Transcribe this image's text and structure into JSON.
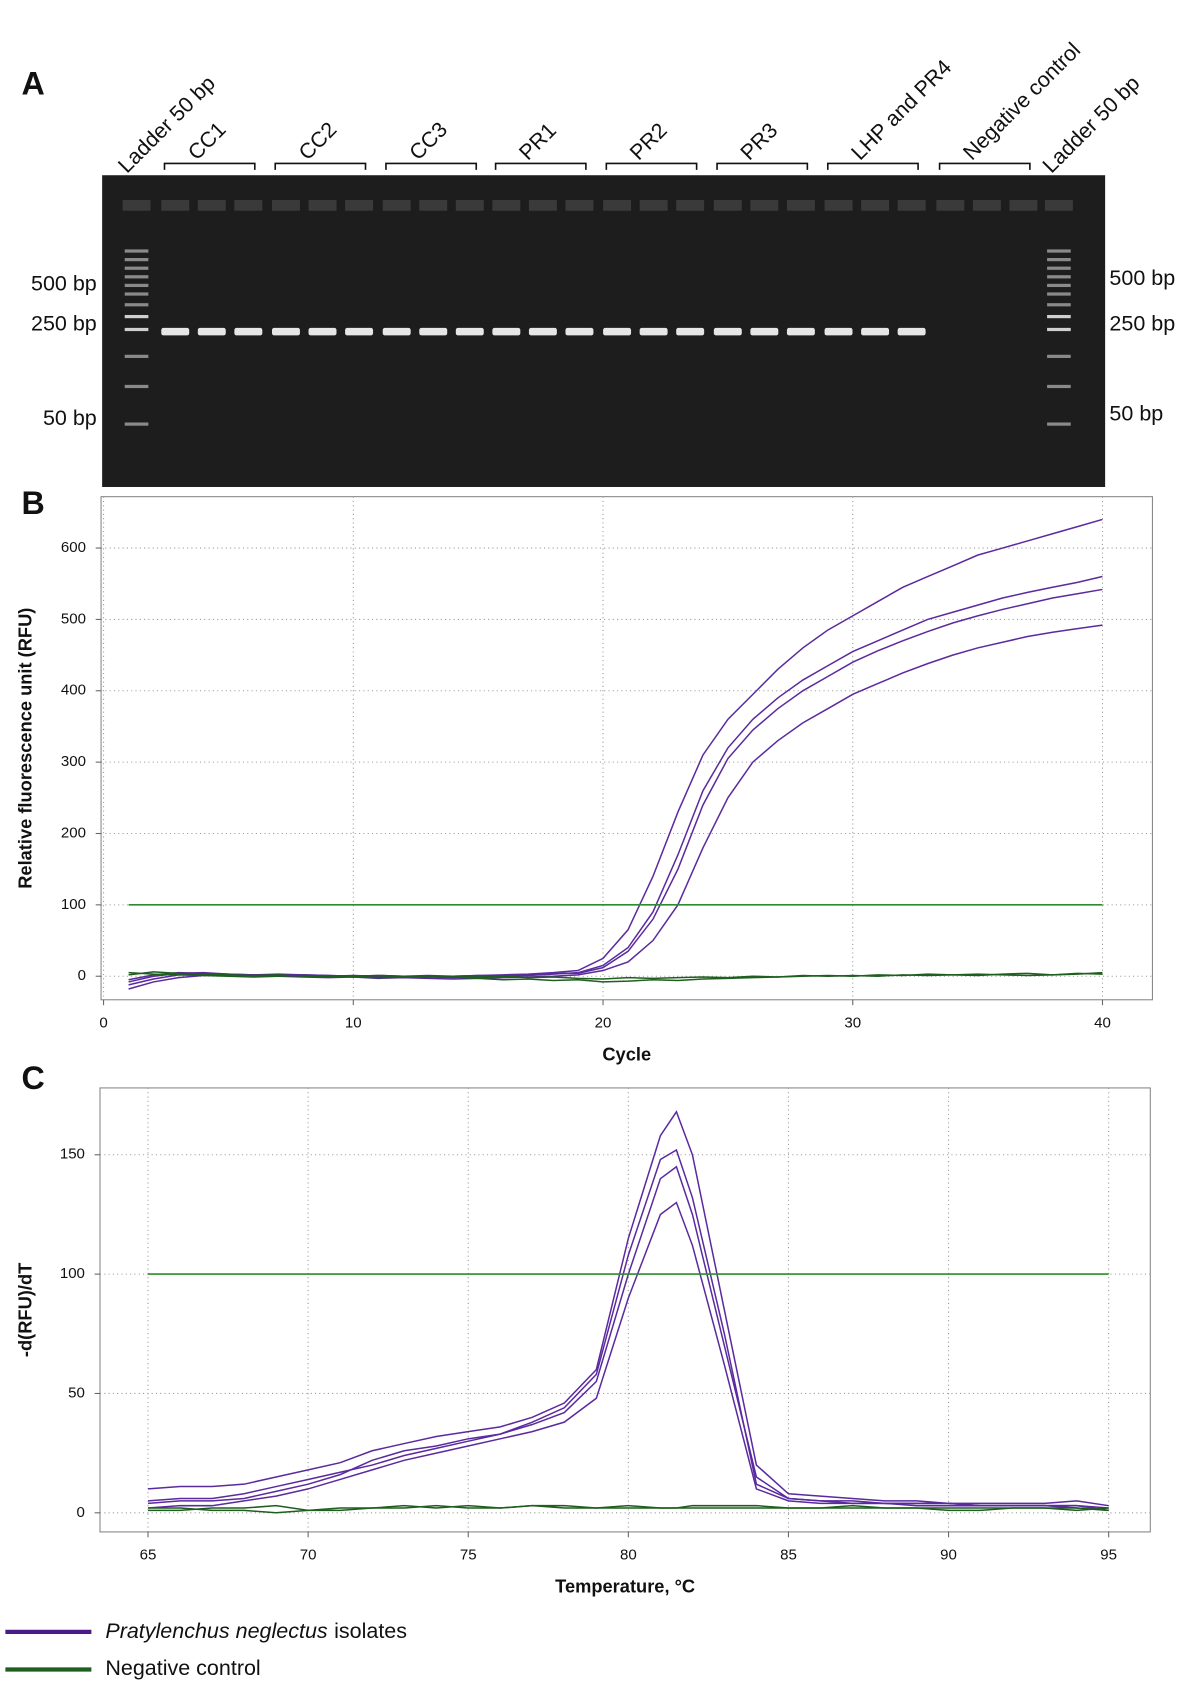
{
  "gel": {
    "label": "A",
    "lanes": [
      "Ladder 50 bp",
      "CC1",
      "CC2",
      "CC3",
      "PR1",
      "PR2",
      "PR3",
      "LHP and PR4",
      "Negative control",
      "Ladder 50 bp"
    ],
    "bp_left": [
      "500 bp",
      "250 bp",
      "50 bp"
    ],
    "bp_right": [
      "500 bp",
      "250 bp",
      "50 bp"
    ]
  },
  "chart_data": [
    {
      "type": "line",
      "label": "B",
      "xlabel": "Cycle",
      "ylabel": "Relative fluorescence unit (RFU)",
      "xlim": [
        -0.1,
        42
      ],
      "xticks": [
        0,
        10,
        20,
        30,
        40
      ],
      "ylim": [
        -33,
        672
      ],
      "yticks": [
        0,
        100,
        200,
        300,
        400,
        500,
        600
      ],
      "grid": true,
      "threshold": 100,
      "threshold_color": "#2e8b2e",
      "x": [
        1,
        2,
        3,
        4,
        5,
        6,
        7,
        8,
        9,
        10,
        11,
        12,
        13,
        14,
        15,
        16,
        17,
        18,
        19,
        20,
        21,
        22,
        23,
        24,
        25,
        26,
        27,
        28,
        29,
        30,
        31,
        32,
        33,
        34,
        35,
        36,
        37,
        38,
        39,
        40
      ],
      "series": [
        {
          "color": "#5a2a9e",
          "values": [
            -12,
            -4,
            2,
            3,
            2,
            1,
            2,
            1,
            0,
            1,
            0,
            -1,
            0,
            0,
            1,
            0,
            1,
            3,
            5,
            15,
            40,
            90,
            170,
            260,
            320,
            360,
            390,
            415,
            435,
            455,
            470,
            485,
            500,
            510,
            520,
            530,
            538,
            545,
            552,
            560
          ]
        },
        {
          "color": "#5a2a9e",
          "values": [
            -8,
            0,
            4,
            5,
            3,
            2,
            1,
            2,
            1,
            0,
            1,
            0,
            1,
            0,
            1,
            2,
            3,
            5,
            8,
            25,
            65,
            140,
            230,
            310,
            360,
            395,
            430,
            460,
            485,
            505,
            525,
            545,
            560,
            575,
            590,
            600,
            610,
            620,
            630,
            640
          ]
        },
        {
          "color": "#5a2a9e",
          "values": [
            -18,
            -8,
            -2,
            1,
            2,
            1,
            0,
            -1,
            -2,
            -1,
            -3,
            -2,
            -3,
            -4,
            -3,
            -2,
            -1,
            0,
            2,
            8,
            20,
            50,
            100,
            180,
            250,
            300,
            330,
            355,
            375,
            395,
            410,
            425,
            438,
            450,
            460,
            468,
            476,
            482,
            487,
            492
          ]
        },
        {
          "color": "#5a2a9e",
          "values": [
            -5,
            2,
            5,
            4,
            3,
            2,
            3,
            2,
            1,
            0,
            -1,
            -2,
            -1,
            -2,
            -1,
            0,
            2,
            4,
            4,
            12,
            35,
            80,
            150,
            240,
            305,
            345,
            375,
            400,
            420,
            440,
            456,
            470,
            483,
            495,
            505,
            514,
            522,
            530,
            536,
            542
          ]
        },
        {
          "color": "#1e5e1e",
          "values": [
            5,
            3,
            2,
            1,
            0,
            -1,
            0,
            1,
            0,
            -1,
            -2,
            -1,
            0,
            -1,
            -3,
            -5,
            -4,
            -6,
            -5,
            -8,
            -7,
            -5,
            -6,
            -4,
            -3,
            -2,
            -1,
            0,
            1,
            0,
            2,
            1,
            3,
            2,
            1,
            3,
            4,
            2,
            3,
            5
          ]
        },
        {
          "color": "#1e5e1e",
          "values": [
            2,
            6,
            4,
            3,
            2,
            1,
            2,
            0,
            -1,
            0,
            1,
            0,
            -1,
            0,
            -1,
            0,
            -2,
            -1,
            -3,
            -4,
            -2,
            -3,
            -2,
            -1,
            -2,
            0,
            -1,
            1,
            0,
            1,
            0,
            2,
            1,
            2,
            3,
            2,
            1,
            2,
            4,
            3
          ]
        }
      ]
    },
    {
      "type": "line",
      "label": "C",
      "xlabel": "Temperature, °C",
      "ylabel": "-d(RFU)/dT",
      "xlim": [
        63.5,
        96.3
      ],
      "xticks": [
        65,
        70,
        75,
        80,
        85,
        90,
        95
      ],
      "ylim": [
        -8,
        178
      ],
      "yticks": [
        0,
        50,
        100,
        150
      ],
      "grid": true,
      "threshold": 100,
      "threshold_color": "#2e8b2e",
      "x": [
        65,
        66,
        67,
        68,
        69,
        70,
        71,
        72,
        73,
        74,
        75,
        76,
        77,
        78,
        79,
        80,
        81,
        81.5,
        82,
        83,
        84,
        85,
        86,
        87,
        88,
        89,
        90,
        91,
        92,
        93,
        94,
        95
      ],
      "series": [
        {
          "color": "#5a2a9e",
          "values": [
            5,
            6,
            6,
            8,
            11,
            14,
            17,
            20,
            24,
            27,
            30,
            33,
            37,
            42,
            55,
            100,
            140,
            145,
            125,
            70,
            15,
            6,
            5,
            5,
            4,
            4,
            4,
            3,
            3,
            3,
            3,
            2
          ]
        },
        {
          "color": "#5a2a9e",
          "values": [
            10,
            11,
            11,
            12,
            15,
            18,
            21,
            26,
            29,
            32,
            34,
            36,
            40,
            46,
            60,
            115,
            158,
            168,
            150,
            85,
            20,
            8,
            7,
            6,
            5,
            5,
            4,
            4,
            4,
            4,
            5,
            3
          ]
        },
        {
          "color": "#5a2a9e",
          "values": [
            2,
            3,
            3,
            5,
            7,
            10,
            14,
            18,
            22,
            25,
            28,
            31,
            34,
            38,
            48,
            90,
            125,
            130,
            112,
            62,
            10,
            5,
            4,
            4,
            4,
            3,
            3,
            3,
            3,
            3,
            2,
            1
          ]
        },
        {
          "color": "#5a2a9e",
          "values": [
            4,
            5,
            5,
            6,
            9,
            12,
            16,
            22,
            26,
            28,
            31,
            33,
            38,
            44,
            58,
            108,
            148,
            152,
            132,
            75,
            12,
            6,
            5,
            4,
            4,
            4,
            4,
            3,
            3,
            3,
            3,
            1
          ]
        },
        {
          "color": "#1e5e1e",
          "values": [
            1,
            1,
            2,
            2,
            3,
            1,
            1,
            2,
            2,
            3,
            2,
            2,
            3,
            3,
            2,
            2,
            2,
            2,
            3,
            3,
            3,
            2,
            2,
            2,
            2,
            2,
            2,
            2,
            2,
            2,
            1,
            2
          ]
        },
        {
          "color": "#1e5e1e",
          "values": [
            2,
            2,
            1,
            1,
            0,
            1,
            2,
            2,
            3,
            2,
            3,
            2,
            3,
            2,
            2,
            3,
            2,
            2,
            2,
            2,
            2,
            2,
            2,
            3,
            2,
            2,
            1,
            1,
            2,
            2,
            2,
            1
          ]
        }
      ]
    }
  ],
  "legend": [
    {
      "italic": "Pratylenchus neglectus",
      "name": "isolates",
      "color": "#4a1a8a"
    },
    {
      "name": "Negative control",
      "color": "#1e5e1e"
    }
  ]
}
